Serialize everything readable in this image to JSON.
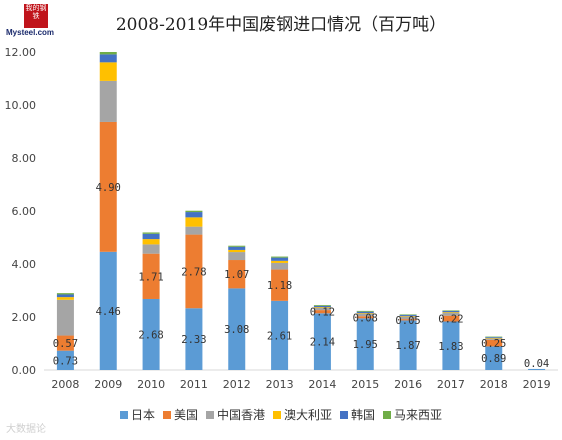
{
  "logo": {
    "cn": "我的钢铁",
    "en": "Mysteel.com"
  },
  "watermark": "大数据论",
  "chart_data": {
    "type": "bar",
    "stacked": true,
    "title": "2008-2019年中国废钢进口情况（百万吨）",
    "xlabel": "",
    "ylabel": "",
    "ylim": [
      0,
      12
    ],
    "yticks": [
      "0.00",
      "2.00",
      "4.00",
      "6.00",
      "8.00",
      "10.00",
      "12.00"
    ],
    "grid": false,
    "legend_position": "bottom",
    "categories": [
      "2008",
      "2009",
      "2010",
      "2011",
      "2012",
      "2013",
      "2014",
      "2015",
      "2016",
      "2017",
      "2018",
      "2019"
    ],
    "series": [
      {
        "name": "日本",
        "color": "#5b9bd5",
        "values": [
          0.73,
          4.46,
          2.68,
          2.33,
          3.08,
          2.61,
          2.14,
          1.95,
          1.87,
          1.83,
          0.89,
          0.04
        ]
      },
      {
        "name": "美国",
        "color": "#ed7d31",
        "values": [
          0.57,
          4.9,
          1.71,
          2.78,
          1.07,
          1.18,
          0.12,
          0.08,
          0.05,
          0.22,
          0.25,
          0.0
        ]
      },
      {
        "name": "中国香港",
        "color": "#a5a5a5",
        "values": [
          1.35,
          1.55,
          0.35,
          0.3,
          0.3,
          0.25,
          0.08,
          0.1,
          0.1,
          0.1,
          0.05,
          0.0
        ]
      },
      {
        "name": "澳大利亚",
        "color": "#ffc000",
        "values": [
          0.1,
          0.7,
          0.2,
          0.35,
          0.08,
          0.08,
          0.03,
          0.02,
          0.02,
          0.03,
          0.02,
          0.0
        ]
      },
      {
        "name": "韩国",
        "color": "#4472c4",
        "values": [
          0.1,
          0.3,
          0.2,
          0.2,
          0.12,
          0.12,
          0.05,
          0.05,
          0.04,
          0.05,
          0.03,
          0.0
        ]
      },
      {
        "name": "马来西亚",
        "color": "#70ad47",
        "values": [
          0.05,
          0.09,
          0.05,
          0.05,
          0.04,
          0.04,
          0.03,
          0.03,
          0.02,
          0.02,
          0.02,
          0.0
        ]
      }
    ],
    "data_labels": {
      "日本": [
        "0.73",
        "4.46",
        "2.68",
        "2.33",
        "3.08",
        "2.61",
        "2.14",
        "1.95",
        "1.87",
        "1.83",
        "0.89",
        "0.04"
      ],
      "美国": [
        "0.57",
        "4.90",
        "1.71",
        "2.78",
        "1.07",
        "1.18",
        "0.12",
        "0.08",
        "0.05",
        "0.22",
        "0.25",
        ""
      ]
    }
  }
}
